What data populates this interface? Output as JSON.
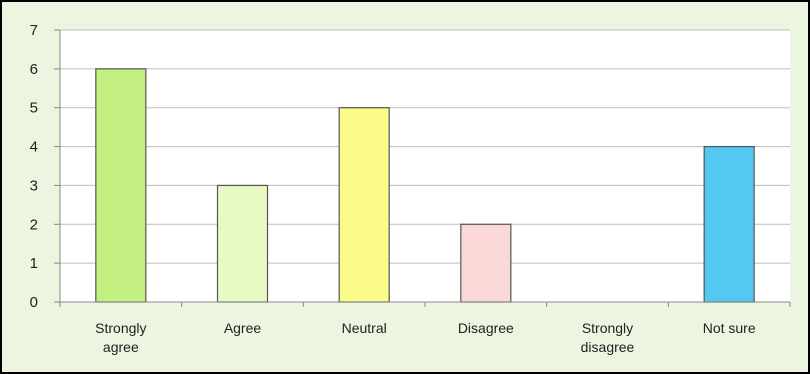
{
  "chart_data": {
    "type": "bar",
    "title": "",
    "xlabel": "",
    "ylabel": "",
    "categories": [
      [
        "Strongly",
        "agree"
      ],
      [
        "Agree"
      ],
      [
        "Neutral"
      ],
      [
        "Disagree"
      ],
      [
        "Strongly",
        "disagree"
      ],
      [
        "Not sure"
      ]
    ],
    "values": [
      6,
      3,
      5,
      2,
      0,
      4
    ],
    "ylim": [
      0,
      7
    ],
    "yticks": [
      "0",
      "1",
      "2",
      "3",
      "4",
      "5",
      "6",
      "7"
    ],
    "grid": true,
    "legend": "none",
    "colors": {
      "bars": [
        "#c4f082",
        "#e9f9c4",
        "#fbfb8a",
        "#fbd9d9",
        "#dddddd",
        "#54c8f2"
      ],
      "bar_outline": "#555555",
      "plot_background": "#ffffff",
      "chart_background": "#ebf5df",
      "gridline": "#bdbdbd"
    }
  }
}
